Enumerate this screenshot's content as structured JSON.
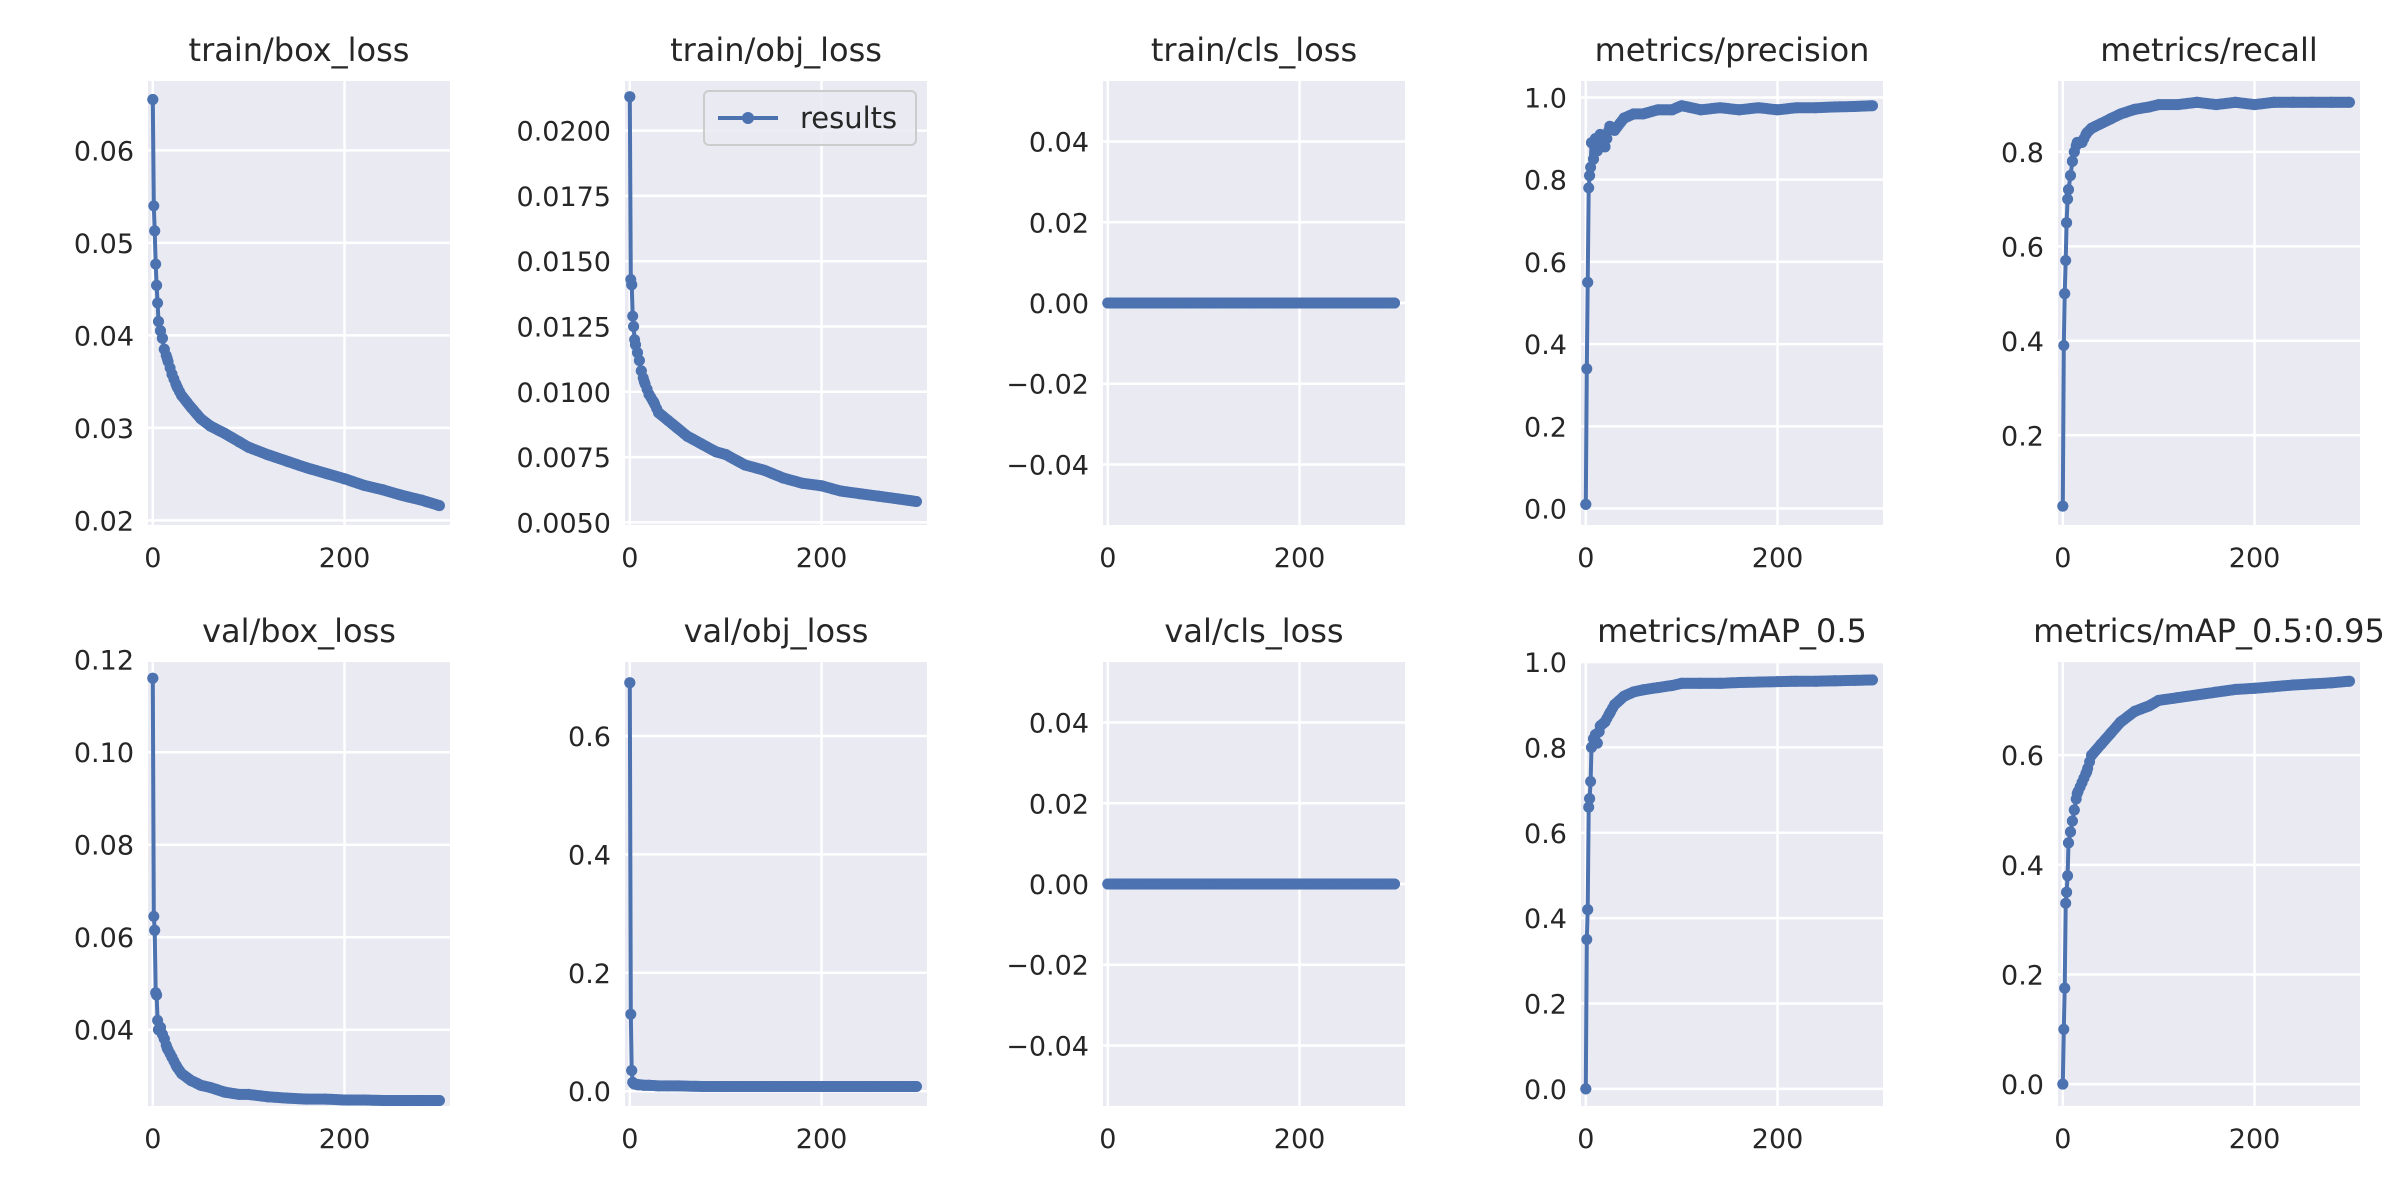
{
  "colors": {
    "series": "#4C72B0",
    "axes_bg": "#EAEAF2",
    "grid": "#FFFFFF",
    "text": "#262626"
  },
  "legend": {
    "label": "results",
    "placement": "upper right of train/obj_loss"
  },
  "chart_data": [
    {
      "type": "line",
      "title": "train/box_loss",
      "xlabel": "",
      "ylabel": "",
      "xlim": [
        -5,
        310
      ],
      "ylim": [
        0.0195,
        0.0675
      ],
      "xticks": [
        {
          "v": 0,
          "label": "0"
        },
        {
          "v": 200,
          "label": "200"
        }
      ],
      "yticks": [
        {
          "v": 0.02,
          "label": "0.02"
        },
        {
          "v": 0.03,
          "label": "0.03"
        },
        {
          "v": 0.04,
          "label": "0.04"
        },
        {
          "v": 0.05,
          "label": "0.05"
        },
        {
          "v": 0.06,
          "label": "0.06"
        }
      ],
      "x": [
        0,
        1,
        2,
        3,
        4,
        5,
        6,
        8,
        10,
        12,
        15,
        20,
        25,
        30,
        40,
        50,
        60,
        75,
        90,
        100,
        120,
        140,
        160,
        180,
        200,
        220,
        240,
        260,
        280,
        299
      ],
      "y": [
        0.0655,
        0.054,
        0.0513,
        0.0477,
        0.0454,
        0.0435,
        0.0415,
        0.0405,
        0.0397,
        0.0385,
        0.0375,
        0.0358,
        0.0345,
        0.0335,
        0.0322,
        0.031,
        0.0302,
        0.0294,
        0.0285,
        0.0279,
        0.0271,
        0.0264,
        0.0257,
        0.0251,
        0.0245,
        0.0238,
        0.0233,
        0.0227,
        0.0222,
        0.0216
      ]
    },
    {
      "type": "line",
      "title": "train/obj_loss",
      "xlabel": "",
      "ylabel": "",
      "xlim": [
        -5,
        310
      ],
      "ylim": [
        0.0049,
        0.0219
      ],
      "xticks": [
        {
          "v": 0,
          "label": "0"
        },
        {
          "v": 200,
          "label": "200"
        }
      ],
      "yticks": [
        {
          "v": 0.005,
          "label": "0.0050"
        },
        {
          "v": 0.0075,
          "label": "0.0075"
        },
        {
          "v": 0.01,
          "label": "0.0100"
        },
        {
          "v": 0.0125,
          "label": "0.0125"
        },
        {
          "v": 0.015,
          "label": "0.0150"
        },
        {
          "v": 0.0175,
          "label": "0.0175"
        },
        {
          "v": 0.02,
          "label": "0.0200"
        }
      ],
      "legend": true,
      "x": [
        0,
        1,
        2,
        3,
        4,
        5,
        6,
        8,
        10,
        12,
        15,
        20,
        25,
        30,
        40,
        50,
        60,
        75,
        90,
        100,
        120,
        140,
        160,
        180,
        200,
        220,
        240,
        260,
        280,
        299
      ],
      "y": [
        0.0213,
        0.0143,
        0.0141,
        0.0129,
        0.0125,
        0.012,
        0.0118,
        0.0115,
        0.0112,
        0.0108,
        0.0104,
        0.0099,
        0.0096,
        0.0092,
        0.0089,
        0.0086,
        0.0083,
        0.008,
        0.0077,
        0.0076,
        0.0072,
        0.007,
        0.0067,
        0.0065,
        0.0064,
        0.0062,
        0.0061,
        0.006,
        0.0059,
        0.0058
      ]
    },
    {
      "type": "line",
      "title": "train/cls_loss",
      "xlabel": "",
      "ylabel": "",
      "xlim": [
        -5,
        310
      ],
      "ylim": [
        -0.055,
        0.055
      ],
      "xticks": [
        {
          "v": 0,
          "label": "0"
        },
        {
          "v": 200,
          "label": "200"
        }
      ],
      "yticks": [
        {
          "v": -0.04,
          "label": "−0.04"
        },
        {
          "v": -0.02,
          "label": "−0.02"
        },
        {
          "v": 0,
          "label": "0.00"
        },
        {
          "v": 0.02,
          "label": "0.02"
        },
        {
          "v": 0.04,
          "label": "0.04"
        }
      ],
      "x": [
        0,
        299
      ],
      "y": [
        0,
        0
      ],
      "flat_dense": true
    },
    {
      "type": "line",
      "title": "metrics/precision",
      "xlabel": "",
      "ylabel": "",
      "xlim": [
        -5,
        310
      ],
      "ylim": [
        -0.04,
        1.04
      ],
      "xticks": [
        {
          "v": 0,
          "label": "0"
        },
        {
          "v": 200,
          "label": "200"
        }
      ],
      "yticks": [
        {
          "v": 0,
          "label": "0.0"
        },
        {
          "v": 0.2,
          "label": "0.2"
        },
        {
          "v": 0.4,
          "label": "0.4"
        },
        {
          "v": 0.6,
          "label": "0.6"
        },
        {
          "v": 0.8,
          "label": "0.8"
        },
        {
          "v": 1.0,
          "label": "1.0"
        }
      ],
      "x": [
        0,
        1,
        2,
        3,
        4,
        5,
        6,
        8,
        10,
        12,
        15,
        20,
        25,
        30,
        40,
        50,
        60,
        75,
        90,
        100,
        120,
        140,
        160,
        180,
        200,
        220,
        240,
        260,
        280,
        299
      ],
      "y": [
        0.01,
        0.34,
        0.55,
        0.78,
        0.81,
        0.83,
        0.89,
        0.85,
        0.9,
        0.87,
        0.91,
        0.88,
        0.93,
        0.92,
        0.95,
        0.96,
        0.96,
        0.97,
        0.97,
        0.98,
        0.97,
        0.975,
        0.97,
        0.975,
        0.97,
        0.975,
        0.975,
        0.977,
        0.978,
        0.98
      ]
    },
    {
      "type": "line",
      "title": "metrics/recall",
      "xlabel": "",
      "ylabel": "",
      "xlim": [
        -5,
        310
      ],
      "ylim": [
        0.01,
        0.95
      ],
      "xticks": [
        {
          "v": 0,
          "label": "0"
        },
        {
          "v": 200,
          "label": "200"
        }
      ],
      "yticks": [
        {
          "v": 0.2,
          "label": "0.2"
        },
        {
          "v": 0.4,
          "label": "0.4"
        },
        {
          "v": 0.6,
          "label": "0.6"
        },
        {
          "v": 0.8,
          "label": "0.8"
        }
      ],
      "x": [
        0,
        1,
        2,
        3,
        4,
        5,
        6,
        8,
        10,
        12,
        15,
        20,
        25,
        30,
        40,
        50,
        60,
        75,
        90,
        100,
        120,
        140,
        160,
        180,
        200,
        220,
        240,
        260,
        280,
        299
      ],
      "y": [
        0.05,
        0.39,
        0.5,
        0.57,
        0.65,
        0.7,
        0.72,
        0.75,
        0.78,
        0.8,
        0.82,
        0.82,
        0.84,
        0.85,
        0.86,
        0.87,
        0.88,
        0.89,
        0.895,
        0.9,
        0.9,
        0.905,
        0.9,
        0.905,
        0.9,
        0.905,
        0.905,
        0.905,
        0.905,
        0.905
      ]
    },
    {
      "type": "line",
      "title": "val/box_loss",
      "xlabel": "",
      "ylabel": "",
      "xlim": [
        -5,
        310
      ],
      "ylim": [
        0.0235,
        0.1195
      ],
      "xticks": [
        {
          "v": 0,
          "label": "0"
        },
        {
          "v": 200,
          "label": "200"
        }
      ],
      "yticks": [
        {
          "v": 0.04,
          "label": "0.04"
        },
        {
          "v": 0.06,
          "label": "0.06"
        },
        {
          "v": 0.08,
          "label": "0.08"
        },
        {
          "v": 0.1,
          "label": "0.10"
        },
        {
          "v": 0.12,
          "label": "0.12"
        }
      ],
      "x": [
        0,
        1,
        2,
        3,
        4,
        5,
        6,
        8,
        10,
        12,
        15,
        20,
        25,
        30,
        40,
        50,
        60,
        75,
        90,
        100,
        120,
        140,
        160,
        180,
        200,
        220,
        240,
        260,
        280,
        299
      ],
      "y": [
        0.116,
        0.0645,
        0.0615,
        0.048,
        0.0475,
        0.042,
        0.04,
        0.0405,
        0.039,
        0.038,
        0.036,
        0.034,
        0.032,
        0.0305,
        0.029,
        0.028,
        0.0275,
        0.0265,
        0.026,
        0.026,
        0.0255,
        0.0252,
        0.025,
        0.025,
        0.0248,
        0.0248,
        0.0247,
        0.0247,
        0.0247,
        0.0247
      ]
    },
    {
      "type": "line",
      "title": "val/obj_loss",
      "xlabel": "",
      "ylabel": "",
      "xlim": [
        -5,
        310
      ],
      "ylim": [
        -0.025,
        0.725
      ],
      "xticks": [
        {
          "v": 0,
          "label": "0"
        },
        {
          "v": 200,
          "label": "200"
        }
      ],
      "yticks": [
        {
          "v": 0,
          "label": "0.0"
        },
        {
          "v": 0.2,
          "label": "0.2"
        },
        {
          "v": 0.4,
          "label": "0.4"
        },
        {
          "v": 0.6,
          "label": "0.6"
        }
      ],
      "x": [
        0,
        1,
        2,
        3,
        4,
        5,
        6,
        8,
        10,
        15,
        20,
        30,
        40,
        50,
        75,
        100,
        150,
        200,
        250,
        299
      ],
      "y": [
        0.69,
        0.13,
        0.035,
        0.015,
        0.013,
        0.012,
        0.012,
        0.011,
        0.011,
        0.01,
        0.01,
        0.009,
        0.009,
        0.009,
        0.008,
        0.008,
        0.008,
        0.008,
        0.008,
        0.008
      ]
    },
    {
      "type": "line",
      "title": "val/cls_loss",
      "xlabel": "",
      "ylabel": "",
      "xlim": [
        -5,
        310
      ],
      "ylim": [
        -0.055,
        0.055
      ],
      "xticks": [
        {
          "v": 0,
          "label": "0"
        },
        {
          "v": 200,
          "label": "200"
        }
      ],
      "yticks": [
        {
          "v": -0.04,
          "label": "−0.04"
        },
        {
          "v": -0.02,
          "label": "−0.02"
        },
        {
          "v": 0,
          "label": "0.00"
        },
        {
          "v": 0.02,
          "label": "0.02"
        },
        {
          "v": 0.04,
          "label": "0.04"
        }
      ],
      "x": [
        0,
        299
      ],
      "y": [
        0,
        0
      ],
      "flat_dense": true
    },
    {
      "type": "line",
      "title": "metrics/mAP_0.5",
      "xlabel": "",
      "ylabel": "",
      "xlim": [
        -5,
        310
      ],
      "ylim": [
        -0.04,
        1.0
      ],
      "xticks": [
        {
          "v": 0,
          "label": "0"
        },
        {
          "v": 200,
          "label": "200"
        }
      ],
      "yticks": [
        {
          "v": 0,
          "label": "0.0"
        },
        {
          "v": 0.2,
          "label": "0.2"
        },
        {
          "v": 0.4,
          "label": "0.4"
        },
        {
          "v": 0.6,
          "label": "0.6"
        },
        {
          "v": 0.8,
          "label": "0.8"
        },
        {
          "v": 1.0,
          "label": "1.0"
        }
      ],
      "x": [
        0,
        1,
        2,
        3,
        4,
        5,
        6,
        8,
        10,
        12,
        15,
        20,
        25,
        30,
        40,
        50,
        60,
        75,
        90,
        100,
        120,
        140,
        160,
        180,
        200,
        220,
        240,
        260,
        280,
        299
      ],
      "y": [
        0.0,
        0.35,
        0.42,
        0.66,
        0.68,
        0.72,
        0.8,
        0.82,
        0.83,
        0.81,
        0.85,
        0.86,
        0.88,
        0.9,
        0.92,
        0.93,
        0.935,
        0.94,
        0.945,
        0.95,
        0.95,
        0.95,
        0.952,
        0.953,
        0.954,
        0.955,
        0.955,
        0.956,
        0.957,
        0.958
      ]
    },
    {
      "type": "line",
      "title": "metrics/mAP_0.5:0.95",
      "xlabel": "",
      "ylabel": "",
      "xlim": [
        -5,
        310
      ],
      "ylim": [
        -0.04,
        0.77
      ],
      "xticks": [
        {
          "v": 0,
          "label": "0"
        },
        {
          "v": 200,
          "label": "200"
        }
      ],
      "yticks": [
        {
          "v": 0,
          "label": "0.0"
        },
        {
          "v": 0.2,
          "label": "0.2"
        },
        {
          "v": 0.4,
          "label": "0.4"
        },
        {
          "v": 0.6,
          "label": "0.6"
        }
      ],
      "x": [
        0,
        1,
        2,
        3,
        4,
        5,
        6,
        8,
        10,
        12,
        15,
        20,
        25,
        30,
        40,
        50,
        60,
        75,
        90,
        100,
        120,
        140,
        160,
        180,
        200,
        220,
        240,
        260,
        280,
        299
      ],
      "y": [
        0.0,
        0.1,
        0.175,
        0.33,
        0.35,
        0.38,
        0.44,
        0.46,
        0.48,
        0.5,
        0.53,
        0.55,
        0.57,
        0.6,
        0.62,
        0.64,
        0.66,
        0.68,
        0.69,
        0.7,
        0.705,
        0.71,
        0.715,
        0.72,
        0.722,
        0.725,
        0.728,
        0.73,
        0.732,
        0.735
      ]
    }
  ]
}
